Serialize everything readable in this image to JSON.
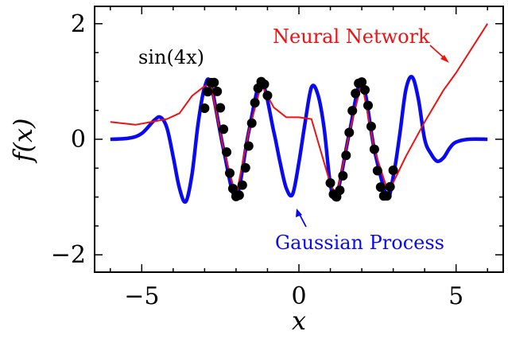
{
  "chart_data": {
    "type": "line",
    "xlabel": "x",
    "ylabel": "f(x)",
    "xlim": [
      -6.5,
      6.5
    ],
    "ylim": [
      -2.3,
      2.3
    ],
    "x_ticks": [
      {
        "value": -5,
        "label": "−5"
      },
      {
        "value": 0,
        "label": "0"
      },
      {
        "value": 5,
        "label": "5"
      }
    ],
    "y_ticks": [
      {
        "value": -2,
        "label": "−2"
      },
      {
        "value": 0,
        "label": "0"
      },
      {
        "value": 2,
        "label": "2"
      }
    ],
    "annotations": {
      "function_label": "sin(4x)",
      "neural_network": "Neural Network",
      "gaussian_process": "Gaussian Process"
    },
    "colors": {
      "gaussian_process": "#0a0aee",
      "neural_network": "#ee1111",
      "target": "#990099",
      "points": "#000000"
    },
    "series": [
      {
        "name": "Gaussian Process",
        "x": [
          -6.0,
          -5.4,
          -5.0,
          -4.6,
          -4.4,
          -4.2,
          -4.0,
          -3.8,
          -3.6,
          -3.4,
          -3.2,
          -3.0,
          -2.8,
          -2.4,
          -2.0,
          -1.6,
          -1.2,
          -0.8,
          -0.6,
          -0.4,
          -0.2,
          0.0,
          0.2,
          0.4,
          0.6,
          0.8,
          1.0,
          1.2,
          1.6,
          2.0,
          2.4,
          2.8,
          3.0,
          3.2,
          3.4,
          3.6,
          3.8,
          4.0,
          4.2,
          4.4,
          4.6,
          4.8,
          5.0,
          5.4,
          6.0
        ],
        "y": [
          0.0,
          0.02,
          0.1,
          0.33,
          0.38,
          0.2,
          -0.3,
          -0.85,
          -1.08,
          -0.6,
          0.3,
          0.9,
          0.95,
          -0.17,
          -0.99,
          0.12,
          0.99,
          0.13,
          -0.4,
          -0.85,
          -0.95,
          -0.4,
          0.3,
          0.9,
          0.78,
          0.2,
          -0.77,
          -0.98,
          0.1,
          0.99,
          -0.18,
          -0.98,
          -0.65,
          0.05,
          0.85,
          1.08,
          0.7,
          0.0,
          -0.25,
          -0.38,
          -0.32,
          -0.15,
          -0.05,
          0.0,
          0.0
        ]
      },
      {
        "name": "Neural Network",
        "x": [
          -6.0,
          -5.2,
          -4.2,
          -3.8,
          -3.4,
          -3.0,
          -2.8,
          -2.4,
          -2.0,
          -1.6,
          -1.2,
          -1.0,
          -0.8,
          -0.4,
          0.0,
          0.4,
          0.8,
          1.0,
          1.2,
          1.6,
          2.0,
          2.4,
          2.8,
          3.0,
          3.4,
          4.0,
          4.6,
          5.0,
          6.0
        ],
        "y": [
          0.3,
          0.25,
          0.35,
          0.45,
          0.75,
          0.92,
          0.95,
          -0.17,
          -0.99,
          0.12,
          0.95,
          0.75,
          0.55,
          0.38,
          0.38,
          0.35,
          -0.4,
          -0.77,
          -0.98,
          0.1,
          0.99,
          -0.18,
          -0.85,
          -0.75,
          -0.3,
          0.3,
          0.85,
          1.15,
          2.0
        ]
      }
    ],
    "samples": {
      "name": "Data points",
      "x": [
        -3.0,
        -2.9,
        -2.8,
        -2.7,
        -2.6,
        -2.5,
        -2.4,
        -2.3,
        -2.2,
        -2.1,
        -2.0,
        -1.9,
        -1.8,
        -1.7,
        -1.6,
        -1.5,
        -1.4,
        -1.3,
        -1.2,
        -1.1,
        -1.0,
        1.0,
        1.1,
        1.2,
        1.3,
        1.4,
        1.5,
        1.6,
        1.7,
        1.8,
        1.9,
        2.0,
        2.1,
        2.2,
        2.3,
        2.4,
        2.5,
        2.6,
        2.7,
        2.8,
        2.9,
        3.0
      ]
    }
  }
}
